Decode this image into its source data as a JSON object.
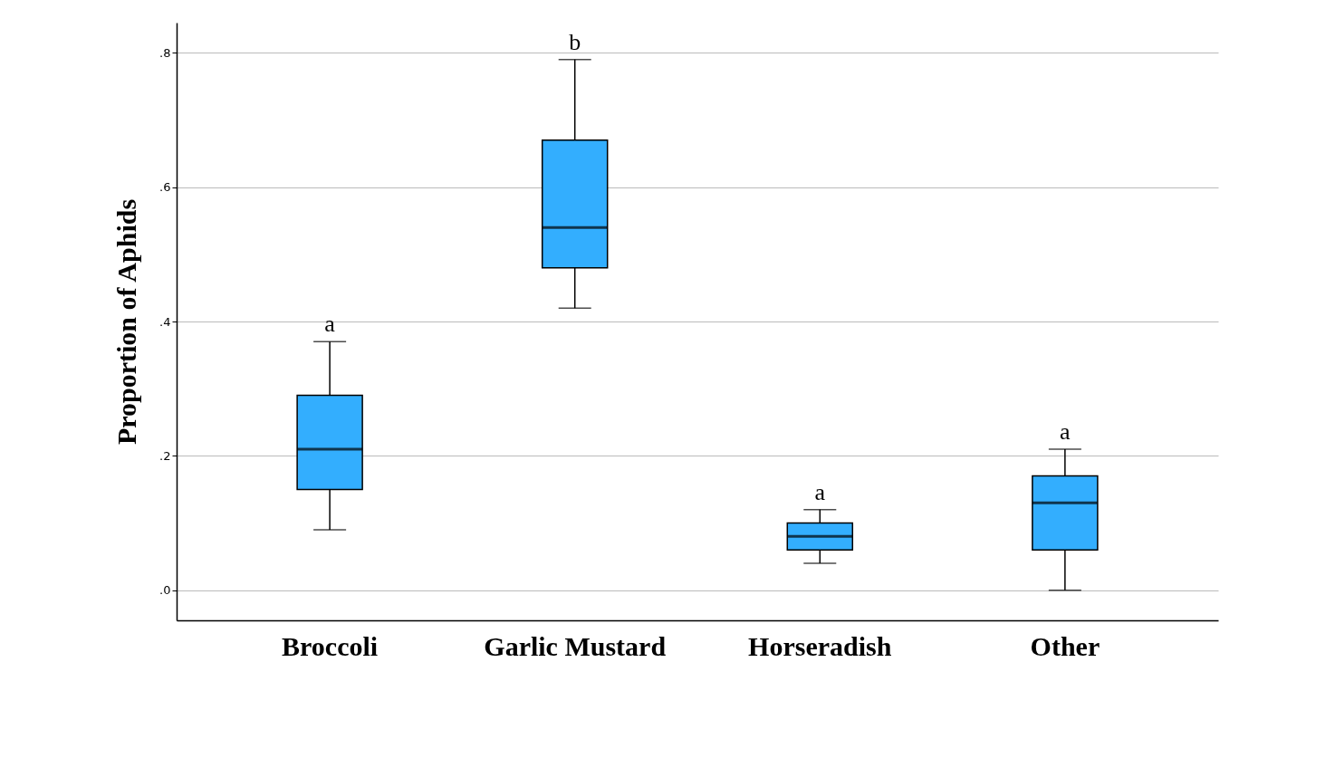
{
  "chart_data": {
    "type": "box",
    "ylabel": "Proportion of Aphids",
    "categories": [
      "Broccoli",
      "Garlic Mustard",
      "Horseradish",
      "Other"
    ],
    "series": [
      {
        "color": "#33aefe",
        "boxes": [
          {
            "low": 0.09,
            "q1": 0.15,
            "median": 0.21,
            "q3": 0.29,
            "high": 0.37
          },
          {
            "low": 0.42,
            "q1": 0.48,
            "median": 0.54,
            "q3": 0.67,
            "high": 0.79
          },
          {
            "low": 0.04,
            "q1": 0.06,
            "median": 0.08,
            "q3": 0.1,
            "high": 0.12
          },
          {
            "low": 0.0,
            "q1": 0.06,
            "median": 0.13,
            "q3": 0.17,
            "high": 0.21
          }
        ]
      }
    ],
    "ylim": [
      -0.045,
      0.845
    ],
    "yticks": [
      {
        "value": 0,
        "label": ".0"
      },
      {
        "value": 0.2,
        "label": ".2"
      },
      {
        "value": 0.4,
        "label": ".4"
      },
      {
        "value": 0.6,
        "label": ".6"
      },
      {
        "value": 0.8,
        "label": ".8"
      }
    ],
    "grid": "y",
    "annotations": [
      "a",
      "b",
      "a",
      "a"
    ]
  }
}
